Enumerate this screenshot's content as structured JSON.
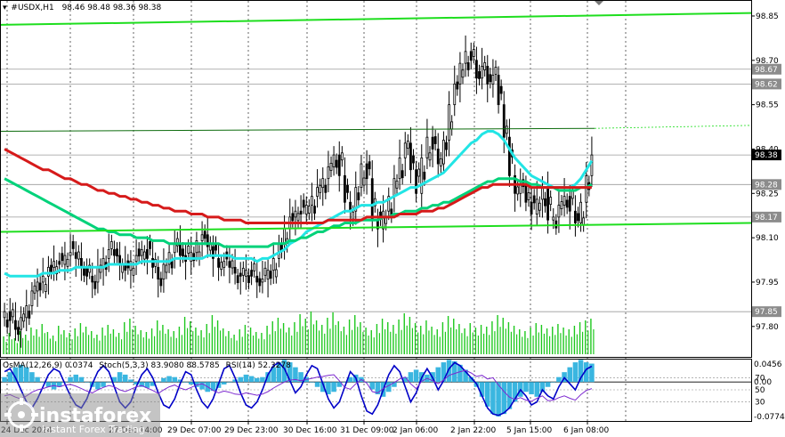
{
  "header": {
    "symbol": "#USDX,H1",
    "ohlc": "98.46 98.48 98.36 98.38",
    "osc_label": "OsMA(12,26,9) 0.0374",
    "stoch_label": "Stoch(5,3,3) 83.9080 88.5785",
    "rsi_label": "RSI(14) 52.3278"
  },
  "watermark": {
    "brand": "instaforex",
    "tagline": "Instant Forex Trading"
  },
  "colors": {
    "candle": "#000000",
    "ma_fast": "#22e5e5",
    "ma_mid": "#00d27a",
    "ma_slow": "#d61a1a",
    "channel": "#1ede1e",
    "volume": "#1ec81e",
    "osma_bar": "#3ab6e0",
    "stoch_main": "#0000c8",
    "rsi": "#7e2ad0"
  },
  "chart_data": {
    "type": "line",
    "symbol": "#USDX",
    "timeframe": "H1",
    "ylim": [
      97.7,
      98.88
    ],
    "y_ticks": [
      "98.85",
      "98.70",
      "98.55",
      "98.40",
      "98.25",
      "98.10",
      "97.95",
      "97.80",
      "97.65"
    ],
    "price_tags": [
      "98.67",
      "98.62",
      "98.38",
      "98.28",
      "98.17",
      "97.85"
    ],
    "x_ticks": [
      "24 Dec 2024",
      "29 Dec 07:00",
      "29 Dec 23:00",
      "30 Dec 16:00",
      "31 Dec 09:00",
      "2 Jan 06:00",
      "2 Jan 22:00",
      "5 Jan 15:00",
      "6 Jan 08:00"
    ],
    "x_ticks_partial": [
      "27 Dec 14:00"
    ],
    "close_series": [
      97.85,
      97.82,
      97.79,
      97.83,
      97.87,
      97.92,
      97.95,
      97.97,
      98.0,
      98.02,
      98.01,
      98.04,
      98.05,
      98.03,
      98.0,
      97.97,
      97.95,
      98.0,
      98.03,
      98.06,
      98.04,
      98.01,
      97.99,
      98.02,
      98.04,
      98.06,
      98.03,
      98.0,
      97.96,
      98.01,
      98.05,
      98.08,
      98.04,
      98.02,
      98.05,
      98.09,
      98.11,
      98.07,
      98.03,
      98.0,
      98.02,
      98.0,
      97.98,
      97.97,
      97.99,
      97.97,
      97.95,
      97.96,
      97.99,
      98.03,
      98.08,
      98.13,
      98.17,
      98.19,
      98.18,
      98.21,
      98.24,
      98.27,
      98.3,
      98.34,
      98.38,
      98.31,
      98.22,
      98.19,
      98.27,
      98.35,
      98.3,
      98.16,
      98.13,
      98.19,
      98.24,
      98.3,
      98.37,
      98.42,
      98.33,
      98.25,
      98.37,
      98.44,
      98.4,
      98.35,
      98.43,
      98.55,
      98.62,
      98.69,
      98.73,
      98.7,
      98.64,
      98.68,
      98.62,
      98.65,
      98.55,
      98.44,
      98.31,
      98.25,
      98.28,
      98.22,
      98.18,
      98.23,
      98.27,
      98.16,
      98.17,
      98.21,
      98.24,
      98.19,
      98.15,
      98.22,
      98.31,
      98.38
    ],
    "volume_series": [
      20,
      24,
      18,
      26,
      22,
      30,
      28,
      34,
      25,
      21,
      32,
      27,
      24,
      29,
      35,
      31,
      26,
      22,
      30,
      33,
      28,
      24,
      36,
      40,
      32,
      27,
      25,
      29,
      38,
      33,
      28,
      26,
      31,
      42,
      37,
      30,
      27,
      34,
      44,
      38,
      29,
      26,
      22,
      28,
      33,
      30,
      25,
      24,
      32,
      37,
      41,
      35,
      30,
      36,
      45,
      40,
      48,
      38,
      33,
      41,
      47,
      37,
      31,
      39,
      44,
      36,
      30,
      27,
      34,
      40,
      36,
      33,
      39,
      46,
      42,
      35,
      32,
      38,
      31,
      28,
      36,
      43,
      40,
      34,
      29,
      35,
      30,
      33,
      31,
      37,
      44,
      41,
      36,
      32,
      28,
      26,
      30,
      35,
      33,
      29,
      31,
      34,
      30,
      28,
      32,
      36,
      38,
      40
    ],
    "series": [
      {
        "values": [
          97.98,
          97.97,
          97.97,
          97.97,
          97.97,
          97.97,
          97.97,
          97.98,
          97.98,
          97.98,
          97.99,
          97.99,
          97.99,
          98.0,
          98.0,
          98.0,
          98.0,
          98.0,
          98.0,
          98.01,
          98.01,
          98.01,
          98.01,
          98.01,
          98.01,
          98.02,
          98.02,
          98.02,
          98.02,
          98.02,
          98.02,
          98.03,
          98.03,
          98.03,
          98.03,
          98.03,
          98.03,
          98.04,
          98.04,
          98.04,
          98.04,
          98.04,
          98.03,
          98.03,
          98.03,
          98.03,
          98.02,
          98.03,
          98.03,
          98.04,
          98.05,
          98.06,
          98.08,
          98.09,
          98.1,
          98.12,
          98.13,
          98.14,
          98.15,
          98.16,
          98.17,
          98.18,
          98.19,
          98.19,
          98.2,
          98.21,
          98.21,
          98.21,
          98.22,
          98.22,
          98.23,
          98.24,
          98.25,
          98.26,
          98.27,
          98.27,
          98.28,
          98.29,
          98.3,
          98.31,
          98.32,
          98.34,
          98.36,
          98.38,
          98.4,
          98.42,
          98.43,
          98.45,
          98.46,
          98.46,
          98.45,
          98.43,
          98.4,
          98.37,
          98.35,
          98.33,
          98.31,
          98.3,
          98.29,
          98.28,
          98.27,
          98.27,
          98.27,
          98.27,
          98.28,
          98.3,
          98.33,
          98.36
        ]
      },
      {
        "values": [
          98.3,
          98.29,
          98.28,
          98.27,
          98.26,
          98.25,
          98.24,
          98.23,
          98.22,
          98.21,
          98.2,
          98.19,
          98.18,
          98.17,
          98.16,
          98.15,
          98.14,
          98.13,
          98.13,
          98.12,
          98.12,
          98.11,
          98.11,
          98.11,
          98.1,
          98.1,
          98.1,
          98.09,
          98.09,
          98.09,
          98.08,
          98.08,
          98.08,
          98.08,
          98.08,
          98.08,
          98.08,
          98.08,
          98.08,
          98.08,
          98.07,
          98.07,
          98.07,
          98.07,
          98.07,
          98.07,
          98.07,
          98.07,
          98.07,
          98.08,
          98.08,
          98.08,
          98.09,
          98.09,
          98.1,
          98.1,
          98.11,
          98.12,
          98.12,
          98.13,
          98.14,
          98.14,
          98.15,
          98.15,
          98.15,
          98.16,
          98.16,
          98.16,
          98.16,
          98.17,
          98.17,
          98.18,
          98.18,
          98.19,
          98.19,
          98.19,
          98.2,
          98.2,
          98.21,
          98.21,
          98.22,
          98.22,
          98.23,
          98.24,
          98.25,
          98.26,
          98.27,
          98.28,
          98.29,
          98.29,
          98.3,
          98.3,
          98.3,
          98.3,
          98.29,
          98.29,
          98.28,
          98.28,
          98.27,
          98.27,
          98.27,
          98.26,
          98.26,
          98.26,
          98.26,
          98.27,
          98.27,
          98.28
        ]
      },
      {
        "values": [
          98.4,
          98.39,
          98.38,
          98.37,
          98.36,
          98.35,
          98.34,
          98.33,
          98.33,
          98.32,
          98.31,
          98.3,
          98.3,
          98.29,
          98.28,
          98.28,
          98.27,
          98.26,
          98.26,
          98.25,
          98.25,
          98.24,
          98.24,
          98.23,
          98.23,
          98.22,
          98.22,
          98.21,
          98.21,
          98.2,
          98.2,
          98.19,
          98.19,
          98.19,
          98.18,
          98.18,
          98.18,
          98.17,
          98.17,
          98.17,
          98.16,
          98.16,
          98.16,
          98.16,
          98.15,
          98.15,
          98.15,
          98.15,
          98.15,
          98.15,
          98.15,
          98.15,
          98.15,
          98.15,
          98.15,
          98.15,
          98.15,
          98.15,
          98.15,
          98.16,
          98.16,
          98.16,
          98.16,
          98.16,
          98.16,
          98.16,
          98.17,
          98.17,
          98.17,
          98.17,
          98.17,
          98.17,
          98.18,
          98.18,
          98.18,
          98.18,
          98.19,
          98.19,
          98.19,
          98.2,
          98.2,
          98.21,
          98.22,
          98.23,
          98.24,
          98.25,
          98.26,
          98.27,
          98.27,
          98.28,
          98.28,
          98.28,
          98.28,
          98.28,
          98.28,
          98.28,
          98.27,
          98.27,
          98.27,
          98.27,
          98.27,
          98.27,
          98.27,
          98.27,
          98.27,
          98.27,
          98.27,
          98.27
        ]
      }
    ],
    "channel_lines": [
      {
        "start": 98.82,
        "end": 98.86
      },
      {
        "start": 98.46,
        "end": 98.48
      },
      {
        "start": 98.12,
        "end": 98.15
      }
    ],
    "osma_series": [
      0.01,
      0.02,
      0.03,
      0.035,
      0.03,
      0.02,
      0.01,
      0.0,
      -0.01,
      -0.015,
      -0.01,
      0.0,
      0.01,
      0.015,
      0.01,
      0.0,
      -0.01,
      -0.015,
      -0.01,
      0.0,
      0.01,
      0.02,
      0.015,
      0.005,
      -0.005,
      -0.01,
      -0.012,
      -0.008,
      0.0,
      0.008,
      0.012,
      0.01,
      0.005,
      0.0,
      -0.005,
      -0.01,
      -0.015,
      -0.02,
      -0.018,
      -0.012,
      -0.005,
      0.0,
      0.005,
      0.01,
      0.015,
      0.012,
      0.008,
      0.01,
      0.02,
      0.03,
      0.04,
      0.045,
      0.04,
      0.03,
      0.02,
      0.01,
      0.0,
      -0.01,
      -0.02,
      -0.025,
      -0.02,
      -0.01,
      0.0,
      0.01,
      0.015,
      0.01,
      0.0,
      -0.015,
      -0.025,
      -0.03,
      -0.02,
      -0.01,
      0.0,
      0.01,
      0.02,
      0.025,
      0.02,
      0.015,
      0.02,
      0.03,
      0.04,
      0.045,
      0.042,
      0.035,
      0.025,
      0.01,
      -0.01,
      -0.03,
      -0.05,
      -0.065,
      -0.07,
      -0.065,
      -0.055,
      -0.04,
      -0.03,
      -0.02,
      -0.025,
      -0.03,
      -0.02,
      -0.01,
      0.0,
      0.01,
      0.02,
      0.03,
      0.04,
      0.045,
      0.04,
      0.0374
    ],
    "stoch_series": [
      80,
      85,
      70,
      50,
      30,
      20,
      35,
      55,
      75,
      85,
      80,
      60,
      40,
      25,
      20,
      35,
      60,
      80,
      90,
      80,
      55,
      30,
      20,
      30,
      55,
      75,
      85,
      70,
      45,
      25,
      20,
      35,
      60,
      80,
      75,
      50,
      30,
      20,
      35,
      60,
      85,
      90,
      70,
      45,
      25,
      20,
      30,
      50,
      75,
      90,
      95,
      85,
      65,
      45,
      55,
      75,
      90,
      85,
      60,
      35,
      20,
      30,
      55,
      80,
      70,
      40,
      15,
      10,
      25,
      50,
      75,
      90,
      80,
      55,
      30,
      45,
      70,
      85,
      70,
      50,
      65,
      85,
      95,
      90,
      80,
      70,
      60,
      40,
      20,
      10,
      8,
      12,
      20,
      35,
      50,
      40,
      25,
      30,
      50,
      40,
      35,
      55,
      70,
      60,
      50,
      70,
      84,
      89
    ],
    "rsi_series": [
      40,
      42,
      38,
      35,
      40,
      46,
      50,
      52,
      55,
      57,
      55,
      58,
      59,
      56,
      52,
      48,
      45,
      50,
      54,
      57,
      55,
      50,
      47,
      51,
      55,
      57,
      53,
      49,
      44,
      50,
      55,
      58,
      53,
      50,
      54,
      58,
      60,
      55,
      49,
      45,
      48,
      46,
      43,
      42,
      45,
      43,
      41,
      43,
      47,
      53,
      58,
      63,
      66,
      67,
      65,
      67,
      69,
      71,
      72,
      74,
      75,
      65,
      54,
      51,
      60,
      67,
      61,
      47,
      45,
      52,
      57,
      62,
      68,
      71,
      60,
      52,
      64,
      69,
      65,
      60,
      66,
      74,
      77,
      80,
      82,
      78,
      72,
      74,
      68,
      70,
      58,
      47,
      38,
      34,
      37,
      33,
      31,
      36,
      40,
      32,
      33,
      37,
      40,
      36,
      33,
      42,
      49,
      52
    ],
    "osc_ylim": [
      -0.0774,
      0.0456
    ],
    "osc_tags": [
      "0.0456",
      "0.00",
      "-0.0774"
    ],
    "osc_levels": [
      "70",
      "50",
      "30"
    ]
  }
}
